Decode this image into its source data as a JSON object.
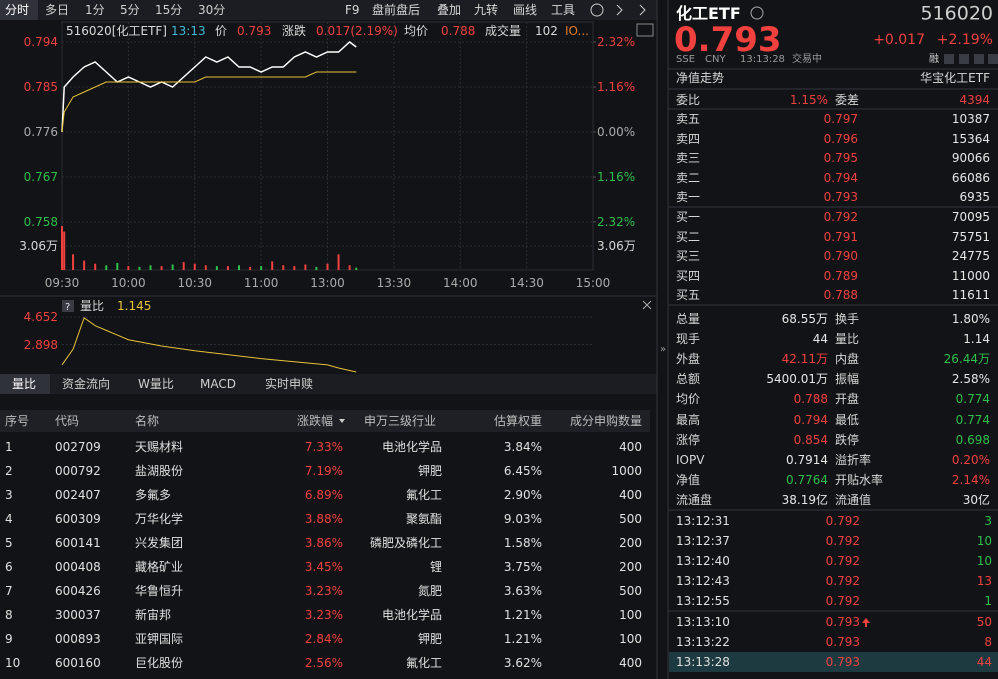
{
  "toolbar": {
    "tabs": [
      "分时",
      "多日",
      "1分",
      "5分",
      "15分",
      "30分"
    ],
    "tools": [
      "F9",
      "盘前盘后",
      "叠加",
      "九转",
      "画线",
      "工具"
    ]
  },
  "chart_data": {
    "type": "line",
    "header": [
      {
        "text": "516020[化工ETF]",
        "color": "#d8d8d8"
      },
      {
        "text": "13:13",
        "color": "#3fb7d6"
      },
      {
        "text": "价",
        "color": "#d8d8d8"
      },
      {
        "text": "0.793",
        "color": "#f0413f"
      },
      {
        "text": "涨跌",
        "color": "#d8d8d8"
      },
      {
        "text": "0.017(2.19%)",
        "color": "#f0413f"
      },
      {
        "text": "均价",
        "color": "#d8d8d8"
      },
      {
        "text": "0.788",
        "color": "#f0413f"
      },
      {
        "text": "成交量",
        "color": "#d8d8d8"
      },
      {
        "text": "102",
        "color": "#d8d8d8"
      },
      {
        "text": "IO...",
        "color": "#e07b2a"
      }
    ],
    "x": [
      "09:30",
      "09:31",
      "09:35",
      "09:40",
      "09:45",
      "09:50",
      "09:55",
      "10:00",
      "10:05",
      "10:10",
      "10:15",
      "10:20",
      "10:25",
      "10:30",
      "10:35",
      "10:40",
      "10:45",
      "10:50",
      "10:55",
      "11:00",
      "11:05",
      "11:10",
      "11:15",
      "11:20",
      "11:25",
      "11:30",
      "13:05",
      "13:10",
      "13:13"
    ],
    "series": [
      {
        "color": "#ffffff",
        "values": [
          0.776,
          0.785,
          0.787,
          0.789,
          0.79,
          0.788,
          0.786,
          0.787,
          0.786,
          0.785,
          0.786,
          0.785,
          0.787,
          0.789,
          0.791,
          0.79,
          0.791,
          0.789,
          0.789,
          0.788,
          0.789,
          0.789,
          0.791,
          0.792,
          0.791,
          0.792,
          0.792,
          0.794,
          0.793
        ]
      },
      {
        "color": "#e8c23a",
        "values": [
          0.776,
          0.78,
          0.783,
          0.784,
          0.785,
          0.786,
          0.786,
          0.786,
          0.786,
          0.786,
          0.786,
          0.786,
          0.786,
          0.786,
          0.787,
          0.787,
          0.787,
          0.787,
          0.787,
          0.787,
          0.787,
          0.787,
          0.787,
          0.787,
          0.788,
          0.788,
          0.788,
          0.788,
          0.788
        ]
      }
    ],
    "ylim": [
      0.758,
      0.794
    ],
    "yticks": [
      0.794,
      0.785,
      0.776,
      0.767,
      0.758
    ],
    "y2lim": [
      -2.32,
      2.32
    ],
    "y2ticks": [
      {
        "value": 2.32,
        "label": "2.32%"
      },
      {
        "value": 1.16,
        "label": "1.16%"
      },
      {
        "value": 0,
        "label": "0.00%"
      },
      {
        "value": -1.16,
        "label": "1.16%"
      },
      {
        "value": -2.32,
        "label": "2.32%"
      }
    ],
    "xlim": [
      "09:30",
      "15:00"
    ],
    "xticks": [
      "09:30",
      "10:00",
      "10:30",
      "11:00",
      "13:00",
      "13:30",
      "14:00",
      "14:30",
      "15:00"
    ],
    "volume": {
      "values": [
        5.6,
        4.9,
        2.0,
        1.2,
        0.8,
        0.6,
        0.9,
        0.5,
        0.4,
        0.6,
        0.5,
        0.7,
        1.0,
        0.8,
        0.6,
        0.5,
        0.5,
        0.6,
        0.4,
        0.5,
        1.1,
        0.6,
        0.5,
        0.7,
        0.4,
        0.8,
        2.0,
        0.6,
        0.3
      ],
      "ylim": [
        0,
        6.12
      ],
      "yticks": [
        {
          "value": 3.06,
          "label": "3.06万"
        }
      ],
      "up_color": "#f0413f",
      "down_color": "#2fbf4a"
    },
    "up_color": "#f0413f",
    "down_color": "#2fbf4a"
  },
  "ratio_chart": {
    "title": "量比",
    "value": 1.145,
    "x": [
      "09:30",
      "09:35",
      "09:40",
      "09:45",
      "09:50",
      "09:55",
      "10:00",
      "10:15",
      "10:30",
      "11:00",
      "11:30",
      "13:05",
      "13:13"
    ],
    "values": [
      1.6,
      2.6,
      4.6,
      4.1,
      3.8,
      3.5,
      3.2,
      2.8,
      2.5,
      2.0,
      1.6,
      1.4,
      1.145
    ],
    "ylim": [
      1.144,
      4.652
    ],
    "yticks": [
      4.652,
      2.898
    ],
    "color": "#e8c23a"
  },
  "sub_tabs": [
    "量比",
    "资金流向",
    "W量比",
    "MACD",
    "实时申赎"
  ],
  "table": {
    "headers": [
      "序号",
      "代码",
      "名称",
      "涨跌幅",
      "申万三级行业",
      "估算权重",
      "成分申购数量"
    ],
    "rows": [
      [
        "1",
        "002709",
        "天赐材料",
        "7.33%",
        "电池化学品",
        "3.84%",
        "400"
      ],
      [
        "2",
        "000792",
        "盐湖股份",
        "7.19%",
        "钾肥",
        "6.45%",
        "1000"
      ],
      [
        "3",
        "002407",
        "多氟多",
        "6.89%",
        "氟化工",
        "2.90%",
        "400"
      ],
      [
        "4",
        "600309",
        "万华化学",
        "3.88%",
        "聚氨酯",
        "9.03%",
        "500"
      ],
      [
        "5",
        "600141",
        "兴发集团",
        "3.86%",
        "磷肥及磷化工",
        "1.58%",
        "200"
      ],
      [
        "6",
        "000408",
        "藏格矿业",
        "3.45%",
        "锂",
        "3.75%",
        "200"
      ],
      [
        "7",
        "600426",
        "华鲁恒升",
        "3.23%",
        "氮肥",
        "3.63%",
        "500"
      ],
      [
        "8",
        "300037",
        "新宙邦",
        "3.23%",
        "电池化学品",
        "1.21%",
        "100"
      ],
      [
        "9",
        "000893",
        "亚钾国际",
        "2.84%",
        "钾肥",
        "1.21%",
        "100"
      ],
      [
        "10",
        "600160",
        "巨化股份",
        "2.56%",
        "氟化工",
        "3.62%",
        "400"
      ]
    ]
  },
  "quote": {
    "name": "化工ETF",
    "code": "516020",
    "price": "0.793",
    "change": "+0.017",
    "change_pct": "+2.19%",
    "market": "SSE",
    "currency": "CNY",
    "time": "13:13:28",
    "status": "交易中",
    "tag": "融",
    "nav_link": "净值走势",
    "fund_name": "华宝化工ETF"
  },
  "order_book": {
    "ratio_label": "委比",
    "ratio": "1.15%",
    "diff_label": "委差",
    "diff": "4394",
    "asks": [
      {
        "label": "卖五",
        "price": "0.797",
        "volume": "10387"
      },
      {
        "label": "卖四",
        "price": "0.796",
        "volume": "15364"
      },
      {
        "label": "卖三",
        "price": "0.795",
        "volume": "90066"
      },
      {
        "label": "卖二",
        "price": "0.794",
        "volume": "66086"
      },
      {
        "label": "卖一",
        "price": "0.793",
        "volume": "6935"
      }
    ],
    "bids": [
      {
        "label": "买一",
        "price": "0.792",
        "volume": "70095"
      },
      {
        "label": "买二",
        "price": "0.791",
        "volume": "75751"
      },
      {
        "label": "买三",
        "price": "0.790",
        "volume": "24775"
      },
      {
        "label": "买四",
        "price": "0.789",
        "volume": "11000"
      },
      {
        "label": "买五",
        "price": "0.788",
        "volume": "11611"
      }
    ]
  },
  "stats": [
    [
      {
        "label": "总量",
        "value": "68.55万",
        "color": "#e6e6e6"
      },
      {
        "label": "换手",
        "value": "1.80%",
        "color": "#e6e6e6"
      }
    ],
    [
      {
        "label": "现手",
        "value": "44",
        "color": "#e6e6e6"
      },
      {
        "label": "量比",
        "value": "1.14",
        "color": "#e6e6e6"
      }
    ],
    [
      {
        "label": "外盘",
        "value": "42.11万",
        "color": "#f0413f"
      },
      {
        "label": "内盘",
        "value": "26.44万",
        "color": "#2fbf4a"
      }
    ],
    [
      {
        "label": "总额",
        "value": "5400.01万",
        "color": "#e6e6e6"
      },
      {
        "label": "振幅",
        "value": "2.58%",
        "color": "#e6e6e6"
      }
    ],
    [
      {
        "label": "均价",
        "value": "0.788",
        "color": "#f0413f"
      },
      {
        "label": "开盘",
        "value": "0.774",
        "color": "#2fbf4a"
      }
    ],
    [
      {
        "label": "最高",
        "value": "0.794",
        "color": "#f0413f"
      },
      {
        "label": "最低",
        "value": "0.774",
        "color": "#2fbf4a"
      }
    ],
    [
      {
        "label": "涨停",
        "value": "0.854",
        "color": "#f0413f"
      },
      {
        "label": "跌停",
        "value": "0.698",
        "color": "#2fbf4a"
      }
    ],
    [
      {
        "label": "IOPV",
        "value": "0.7914",
        "color": "#e6e6e6"
      },
      {
        "label": "溢折率",
        "value": "0.20%",
        "color": "#f0413f"
      }
    ],
    [
      {
        "label": "净值",
        "value": "0.7764",
        "color": "#2fbf4a"
      },
      {
        "label": "开贴水率",
        "value": "2.14%",
        "color": "#f0413f"
      }
    ],
    [
      {
        "label": "流通盘",
        "value": "38.19亿",
        "color": "#e6e6e6"
      },
      {
        "label": "流通值",
        "value": "30亿",
        "color": "#e6e6e6"
      }
    ]
  ],
  "trades": [
    {
      "time": "13:12:31",
      "price": "0.792",
      "volume": "3",
      "color": "#2fbf4a"
    },
    {
      "time": "13:12:37",
      "price": "0.792",
      "volume": "10",
      "color": "#2fbf4a"
    },
    {
      "time": "13:12:40",
      "price": "0.792",
      "volume": "10",
      "color": "#2fbf4a"
    },
    {
      "time": "13:12:43",
      "price": "0.792",
      "volume": "13",
      "color": "#f0413f"
    },
    {
      "time": "13:12:55",
      "price": "0.792",
      "volume": "1",
      "color": "#2fbf4a"
    },
    {
      "time": "13:13:10",
      "price": "0.793",
      "volume": "50",
      "color": "#f0413f"
    },
    {
      "time": "13:13:22",
      "price": "0.793",
      "volume": "8",
      "color": "#f0413f"
    },
    {
      "time": "13:13:28",
      "price": "0.793",
      "volume": "44",
      "color": "#f0413f"
    }
  ]
}
